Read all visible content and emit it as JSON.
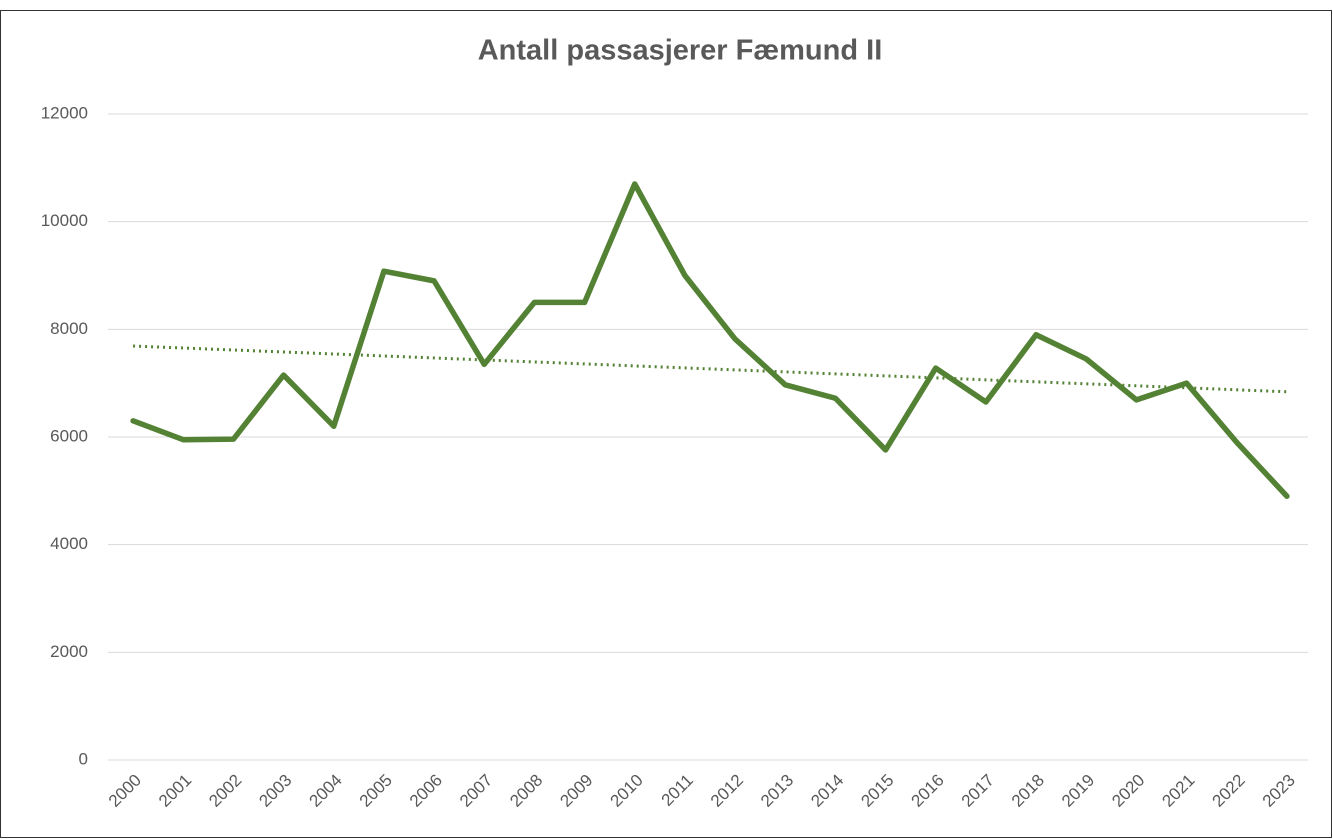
{
  "chart_data": {
    "type": "line",
    "title": "Antall passasjerer Fæmund II",
    "categories": [
      "2000",
      "2001",
      "2002",
      "2003",
      "2004",
      "2005",
      "2006",
      "2007",
      "2008",
      "2009",
      "2010",
      "2011",
      "2012",
      "2013",
      "2014",
      "2015",
      "2016",
      "2017",
      "2018",
      "2019",
      "2020",
      "2021",
      "2022",
      "2023"
    ],
    "series": [
      {
        "name": "Antall passasjerer",
        "color": "#548235",
        "values": [
          6300,
          5950,
          5960,
          7150,
          6200,
          9080,
          8900,
          7350,
          8500,
          8500,
          10700,
          9000,
          7820,
          6970,
          6720,
          5760,
          7280,
          6650,
          7900,
          7450,
          6690,
          7000,
          5900,
          4900
        ]
      }
    ],
    "trendline": {
      "color": "#548235",
      "style": "dotted",
      "start": 7690,
      "end": 6840
    },
    "ylim": [
      0,
      12000
    ],
    "yticks": [
      0,
      2000,
      4000,
      6000,
      8000,
      10000,
      12000
    ],
    "grid": true
  }
}
